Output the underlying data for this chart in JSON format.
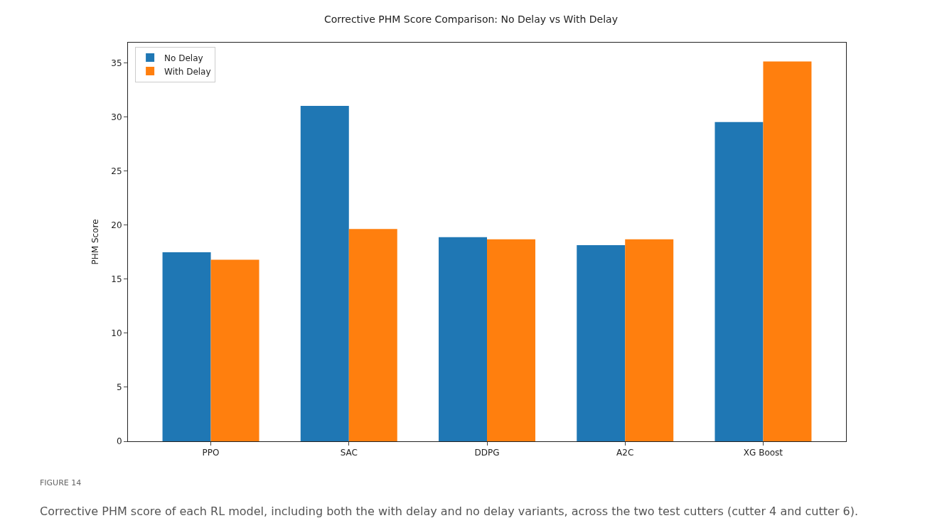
{
  "chart_data": {
    "type": "bar",
    "title": "Corrective PHM Score Comparison: No Delay vs With Delay",
    "ylabel": "PHM Score",
    "categories": [
      "PPO",
      "SAC",
      "DDPG",
      "A2C",
      "XG Boost"
    ],
    "series": [
      {
        "name": "No Delay",
        "color": "#1f77b4",
        "values": [
          17.5,
          31.05,
          18.9,
          18.15,
          29.55
        ]
      },
      {
        "name": "With Delay",
        "color": "#ff7f0e",
        "values": [
          16.8,
          19.65,
          18.7,
          18.7,
          35.15
        ]
      }
    ],
    "ylim": [
      0,
      36.9
    ],
    "yticks": [
      0,
      5,
      10,
      15,
      20,
      25,
      30,
      35
    ],
    "legend": "top left",
    "annotations": [
      "FIGURE 14",
      "Corrective PHM score of each RL model, including both the with delay and no delay variants, across the two test cutters (cutter 4 and cutter 6)."
    ]
  }
}
